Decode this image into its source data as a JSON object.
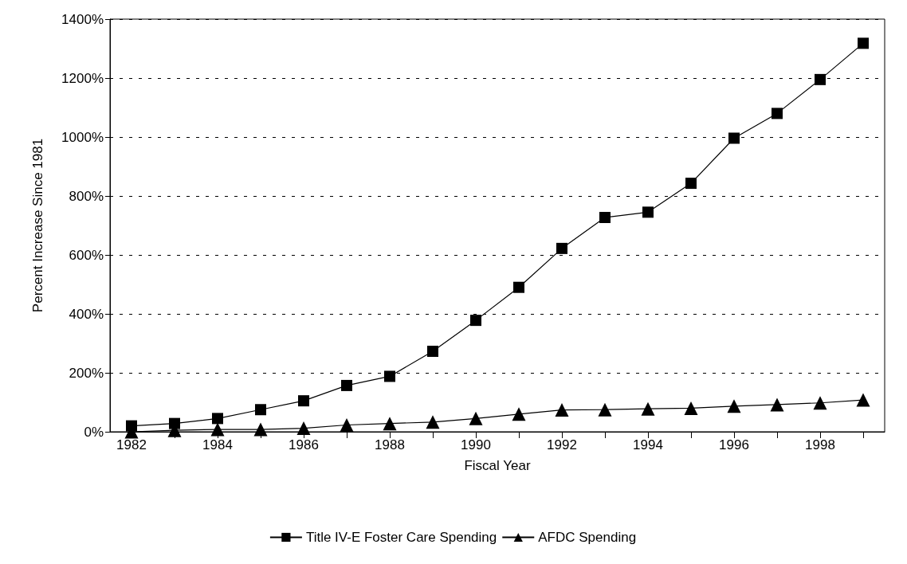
{
  "chart_data": {
    "type": "line",
    "xlabel": "Fiscal Year",
    "ylabel": "Percent Increase Since 1981",
    "categories": [
      "1982",
      null,
      "1984",
      null,
      "1986",
      null,
      "1988",
      null,
      "1990",
      null,
      "1992",
      null,
      "1994",
      null,
      "1996",
      null,
      "1998",
      null
    ],
    "series": [
      {
        "name": "Title IV-E Foster Care Spending",
        "color": "#000000",
        "marker": "square",
        "values": [
          20,
          28,
          45,
          75,
          105,
          157,
          188,
          273,
          378,
          490,
          622,
          727,
          745,
          843,
          996,
          1080,
          1195,
          1318
        ]
      },
      {
        "name": "AFDC Spending",
        "color": "#000000",
        "marker": "triangle",
        "values": [
          0,
          5,
          8,
          8,
          12,
          23,
          28,
          33,
          45,
          60,
          74,
          75,
          78,
          80,
          87,
          92,
          98,
          108
        ]
      }
    ],
    "ylim": [
      0,
      1400
    ],
    "yticks": [
      {
        "value": 0,
        "label": "0%"
      },
      {
        "value": 200,
        "label": "200%"
      },
      {
        "value": 400,
        "label": "400%"
      },
      {
        "value": 600,
        "label": "600%"
      },
      {
        "value": 800,
        "label": "800%"
      },
      {
        "value": 1000,
        "label": "1000%"
      },
      {
        "value": 1200,
        "label": "1200%"
      },
      {
        "value": 1400,
        "label": "1400%"
      }
    ],
    "grid": "y",
    "legend": "bottom",
    "line_style": "solid"
  }
}
